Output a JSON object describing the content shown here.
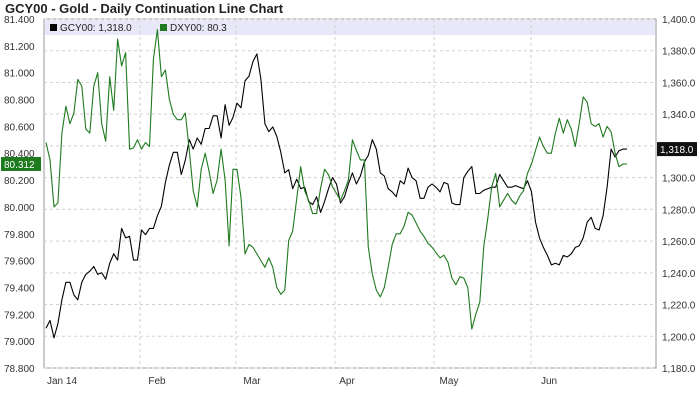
{
  "title": "GCY00 - Gold - Daily Continuation Line Chart",
  "chart_data": {
    "type": "line",
    "title": "GCY00 - Gold - Daily Continuation Line Chart",
    "grid": true,
    "x_labels": [
      "Jan 14",
      "Feb",
      "Mar",
      "Apr",
      "May",
      "Jun"
    ],
    "left_axis": {
      "range": [
        78.8,
        81.4
      ],
      "ticks": [
        "78.800",
        "79.000",
        "79.200",
        "79.400",
        "79.600",
        "79.800",
        "80.000",
        "80.200",
        "80.400",
        "80.600",
        "80.800",
        "81.000",
        "81.200",
        "81.400"
      ]
    },
    "right_axis": {
      "range": [
        1180,
        1400
      ],
      "ticks": [
        "1,180.0",
        "1,200.0",
        "1,220.0",
        "1,240.0",
        "1,260.0",
        "1,280.0",
        "1,300.0",
        "1,320.0",
        "1,340.0",
        "1,360.0",
        "1,380.0",
        "1,400.0"
      ]
    },
    "series": [
      {
        "name": "GCY00",
        "legend_label": "GCY00: 1,318.0",
        "last_label": "1,318.0",
        "color": "#000000",
        "axis": "right",
        "values": [
          1205,
          1210,
          1199,
          1208,
          1223,
          1234,
          1234,
          1226,
          1223,
          1234,
          1239,
          1241,
          1244,
          1239,
          1240,
          1236,
          1246,
          1252,
          1248,
          1268,
          1262,
          1263,
          1248,
          1248,
          1267,
          1264,
          1268,
          1268,
          1276,
          1282,
          1297,
          1308,
          1316,
          1316,
          1302,
          1311,
          1324,
          1318,
          1325,
          1321,
          1331,
          1331,
          1339,
          1339,
          1325,
          1346,
          1333,
          1338,
          1347,
          1344,
          1361,
          1364,
          1373,
          1378,
          1362,
          1334,
          1329,
          1332,
          1326,
          1316,
          1303,
          1305,
          1293,
          1299,
          1293,
          1294,
          1285,
          1283,
          1288,
          1278,
          1285,
          1293,
          1300,
          1296,
          1284,
          1288,
          1296,
          1303,
          1296,
          1301,
          1310,
          1314,
          1324,
          1318,
          1303,
          1301,
          1293,
          1291,
          1288,
          1298,
          1296,
          1306,
          1300,
          1298,
          1287,
          1287,
          1294,
          1296,
          1294,
          1291,
          1297,
          1296,
          1284,
          1283,
          1283,
          1300,
          1304,
          1307,
          1290,
          1290,
          1292,
          1293,
          1294,
          1294,
          1302,
          1298,
          1294,
          1294,
          1295,
          1294,
          1293,
          1298,
          1291,
          1272,
          1262,
          1256,
          1251,
          1245,
          1246,
          1245,
          1251,
          1250,
          1252,
          1256,
          1257,
          1262,
          1272,
          1275,
          1268,
          1267,
          1276,
          1294,
          1318,
          1313,
          1317,
          1318,
          1318
        ]
      },
      {
        "name": "DXY00",
        "legend_label": "DXY00: 80.3",
        "last_label": "80.312",
        "color": "#1e7a1e",
        "axis": "left",
        "values": [
          80.48,
          80.35,
          80.0,
          80.03,
          80.55,
          80.75,
          80.62,
          80.7,
          80.95,
          80.9,
          80.58,
          80.55,
          80.9,
          81.0,
          80.62,
          80.49,
          80.97,
          80.72,
          81.25,
          81.05,
          81.15,
          80.43,
          80.44,
          80.5,
          80.43,
          80.48,
          80.45,
          81.1,
          81.32,
          80.97,
          81.02,
          80.8,
          80.69,
          80.65,
          80.65,
          80.7,
          80.42,
          80.12,
          80.0,
          80.28,
          80.4,
          80.26,
          80.1,
          80.2,
          80.43,
          80.2,
          79.71,
          80.28,
          80.28,
          80.07,
          79.65,
          79.72,
          79.7,
          79.65,
          79.6,
          79.55,
          79.62,
          79.55,
          79.4,
          79.35,
          79.38,
          79.75,
          79.82,
          80.06,
          80.3,
          80.12,
          80.05,
          79.95,
          79.95,
          80.14,
          80.28,
          80.24,
          80.15,
          80.1,
          80.05,
          80.12,
          80.2,
          80.5,
          80.42,
          80.35,
          80.35,
          79.7,
          79.5,
          79.38,
          79.33,
          79.4,
          79.55,
          79.72,
          79.8,
          79.8,
          79.86,
          79.96,
          79.94,
          79.88,
          79.82,
          79.78,
          79.73,
          79.7,
          79.66,
          79.62,
          79.64,
          79.59,
          79.47,
          79.42,
          79.48,
          79.47,
          79.4,
          79.09,
          79.2,
          79.29,
          79.7,
          79.91,
          80.15,
          80.25,
          80.0,
          80.05,
          80.1,
          80.05,
          80.02,
          80.08,
          80.12,
          80.25,
          80.32,
          80.42,
          80.52,
          80.45,
          80.4,
          80.4,
          80.55,
          80.66,
          80.55,
          80.65,
          80.58,
          80.45,
          80.62,
          80.82,
          80.78,
          80.62,
          80.6,
          80.62,
          80.52,
          80.6,
          80.56,
          80.4,
          80.3,
          80.32,
          80.32
        ]
      }
    ]
  }
}
